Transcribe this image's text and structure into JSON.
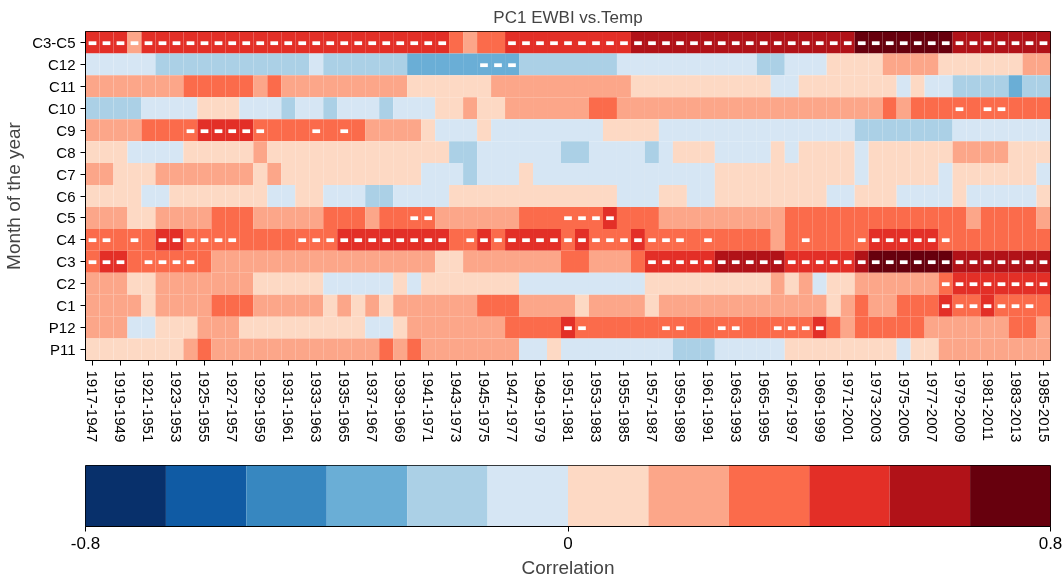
{
  "chart_data": {
    "type": "heatmap",
    "title": "PC1 EWBI vs.Temp",
    "ylabel": "Month of the year",
    "clabel": "Correlation",
    "categories": [
      "1917-1947",
      null,
      "1919-1949",
      null,
      "1921-1951",
      null,
      "1923-1953",
      null,
      "1925-1955",
      null,
      "1927-1957",
      null,
      "1929-1959",
      null,
      "1931-1961",
      null,
      "1933-1963",
      null,
      "1935-1965",
      null,
      "1937-1967",
      null,
      "1939-1969",
      null,
      "1941-1971",
      null,
      "1943-1973",
      null,
      "1945-1975",
      null,
      "1947-1977",
      null,
      "1949-1979",
      null,
      "1951-1981",
      null,
      "1953-1983",
      null,
      "1955-1985",
      null,
      "1957-1987",
      null,
      "1959-1989",
      null,
      "1961-1991",
      null,
      "1963-1993",
      null,
      "1965-1995",
      null,
      "1967-1997",
      null,
      "1969-1999",
      null,
      "1971-2001",
      null,
      "1973-2003",
      null,
      "1975-2005",
      null,
      "1977-2007",
      null,
      "1979-2009",
      null,
      "1981-2011",
      null,
      "1983-2013",
      null,
      "1985-2015"
    ],
    "y_categories": [
      "C3-C5",
      "C12",
      "C11",
      "C10",
      "C9",
      "C8",
      "C7",
      "C6",
      "C5",
      "C4",
      "C3",
      "C2",
      "C1",
      "P12",
      "P11"
    ],
    "clim": [
      -0.8,
      0.8
    ],
    "cticks": [
      -0.8,
      0,
      0.8
    ],
    "cells": [
      [
        0.47,
        0.47,
        0.47,
        0.2,
        0.47,
        0.47,
        0.47,
        0.47,
        0.47,
        0.47,
        0.47,
        0.47,
        0.47,
        0.47,
        0.47,
        0.47,
        0.47,
        0.47,
        0.47,
        0.47,
        0.47,
        0.47,
        0.47,
        0.47,
        0.47,
        0.47,
        0.33,
        0.2,
        0.33,
        0.33,
        0.47,
        0.47,
        0.47,
        0.47,
        0.47,
        0.47,
        0.47,
        0.47,
        0.47,
        0.6,
        0.6,
        0.6,
        0.6,
        0.6,
        0.6,
        0.6,
        0.6,
        0.6,
        0.6,
        0.6,
        0.6,
        0.6,
        0.6,
        0.6,
        0.6,
        0.73,
        0.73,
        0.73,
        0.73,
        0.73,
        0.73,
        0.73,
        0.6,
        0.6,
        0.6,
        0.6,
        0.6,
        0.6,
        0.6
      ],
      [
        -0.07,
        -0.07,
        -0.07,
        -0.07,
        -0.07,
        -0.2,
        -0.2,
        -0.2,
        -0.2,
        -0.2,
        -0.2,
        -0.2,
        -0.2,
        -0.2,
        -0.2,
        -0.2,
        -0.07,
        -0.2,
        -0.2,
        -0.2,
        -0.2,
        -0.2,
        -0.2,
        -0.33,
        -0.33,
        -0.33,
        -0.33,
        -0.33,
        -0.33,
        -0.33,
        -0.33,
        -0.2,
        -0.2,
        -0.2,
        -0.2,
        -0.2,
        -0.2,
        -0.2,
        -0.07,
        -0.07,
        -0.07,
        -0.07,
        -0.07,
        -0.07,
        -0.07,
        -0.07,
        -0.07,
        -0.07,
        -0.2,
        -0.2,
        -0.07,
        -0.07,
        -0.07,
        0.07,
        0.07,
        0.07,
        0.07,
        0.2,
        0.2,
        0.2,
        0.2,
        0.07,
        0.07,
        0.07,
        0.07,
        0.07,
        0.07,
        0.2,
        0.2
      ],
      [
        0.2,
        0.2,
        0.2,
        0.2,
        0.2,
        0.2,
        0.2,
        0.33,
        0.33,
        0.33,
        0.33,
        0.33,
        0.2,
        0.33,
        0.2,
        0.2,
        0.2,
        0.2,
        0.2,
        0.2,
        0.2,
        0.2,
        0.2,
        0.07,
        0.07,
        0.07,
        0.07,
        0.07,
        0.07,
        0.2,
        0.2,
        0.2,
        0.2,
        0.2,
        0.2,
        0.2,
        0.2,
        0.2,
        0.2,
        0.07,
        0.07,
        0.07,
        0.07,
        0.07,
        0.07,
        0.07,
        0.07,
        0.07,
        0.07,
        -0.07,
        -0.07,
        0.07,
        0.07,
        0.07,
        0.07,
        0.07,
        0.07,
        0.07,
        -0.07,
        0.07,
        -0.07,
        -0.07,
        -0.2,
        -0.2,
        -0.2,
        -0.2,
        -0.33,
        -0.2,
        -0.2
      ],
      [
        -0.2,
        -0.2,
        -0.2,
        -0.2,
        -0.07,
        -0.07,
        -0.07,
        -0.07,
        0.07,
        0.07,
        0.07,
        -0.07,
        -0.07,
        -0.07,
        -0.2,
        -0.07,
        -0.07,
        -0.2,
        -0.07,
        -0.07,
        -0.07,
        -0.2,
        -0.07,
        -0.07,
        -0.07,
        0.07,
        0.07,
        0.2,
        0.07,
        0.07,
        0.2,
        0.2,
        0.2,
        0.2,
        0.2,
        0.2,
        0.33,
        0.33,
        0.2,
        0.2,
        0.2,
        0.2,
        0.2,
        0.2,
        0.2,
        0.2,
        0.2,
        0.2,
        0.2,
        0.2,
        0.2,
        0.2,
        0.2,
        0.2,
        0.2,
        0.2,
        0.2,
        0.33,
        0.2,
        0.33,
        0.33,
        0.33,
        0.33,
        0.33,
        0.33,
        0.33,
        0.33,
        0.33,
        0.33
      ],
      [
        0.2,
        0.2,
        0.2,
        0.2,
        0.33,
        0.33,
        0.33,
        0.33,
        0.47,
        0.47,
        0.47,
        0.47,
        0.33,
        0.33,
        0.33,
        0.33,
        0.33,
        0.33,
        0.33,
        0.33,
        0.2,
        0.2,
        0.2,
        0.2,
        0.07,
        -0.07,
        -0.07,
        -0.07,
        0.07,
        -0.07,
        -0.07,
        -0.07,
        -0.07,
        -0.07,
        -0.07,
        -0.07,
        -0.07,
        0.07,
        0.07,
        0.07,
        0.07,
        -0.07,
        -0.07,
        -0.07,
        -0.07,
        -0.07,
        -0.07,
        -0.07,
        -0.07,
        -0.07,
        -0.07,
        -0.07,
        -0.07,
        -0.07,
        -0.07,
        -0.2,
        -0.2,
        -0.2,
        -0.2,
        -0.2,
        -0.2,
        -0.2,
        -0.07,
        -0.07,
        -0.07,
        -0.07,
        -0.07,
        -0.07,
        -0.07
      ],
      [
        0.07,
        0.07,
        0.07,
        -0.07,
        -0.07,
        -0.07,
        -0.07,
        0.07,
        0.07,
        0.07,
        0.07,
        0.07,
        0.2,
        0.07,
        0.07,
        0.07,
        0.07,
        0.07,
        0.07,
        0.07,
        0.07,
        0.07,
        0.07,
        0.07,
        0.07,
        0.07,
        -0.2,
        -0.2,
        -0.07,
        -0.07,
        -0.07,
        -0.07,
        -0.07,
        -0.07,
        -0.2,
        -0.2,
        -0.07,
        -0.07,
        -0.07,
        -0.07,
        -0.2,
        -0.07,
        0.07,
        0.07,
        0.07,
        -0.07,
        -0.07,
        -0.07,
        -0.07,
        0.07,
        -0.07,
        0.07,
        0.07,
        0.07,
        0.07,
        -0.07,
        0.07,
        0.07,
        0.07,
        0.07,
        0.07,
        0.07,
        0.2,
        0.2,
        0.2,
        0.2,
        0.07,
        0.07,
        0.07
      ],
      [
        0.2,
        0.2,
        0.07,
        0.07,
        0.07,
        0.2,
        0.2,
        0.2,
        0.2,
        0.2,
        0.2,
        0.2,
        0.07,
        0.2,
        0.07,
        0.07,
        0.07,
        0.07,
        0.07,
        0.07,
        0.07,
        0.07,
        0.07,
        0.07,
        -0.07,
        -0.07,
        -0.07,
        -0.2,
        -0.07,
        -0.07,
        -0.07,
        0.07,
        -0.07,
        -0.07,
        -0.07,
        -0.07,
        -0.07,
        -0.07,
        -0.07,
        -0.07,
        -0.07,
        -0.07,
        -0.07,
        -0.07,
        -0.07,
        0.07,
        0.07,
        0.07,
        0.07,
        0.07,
        0.07,
        0.07,
        0.07,
        0.07,
        0.07,
        -0.07,
        0.07,
        0.07,
        0.07,
        0.07,
        0.07,
        -0.07,
        0.07,
        0.07,
        0.07,
        0.07,
        0.07,
        0.07,
        -0.07
      ],
      [
        0.07,
        0.07,
        0.07,
        0.07,
        -0.07,
        -0.07,
        0.07,
        0.07,
        0.07,
        0.07,
        0.07,
        0.07,
        0.07,
        -0.07,
        -0.07,
        0.07,
        0.07,
        -0.07,
        -0.07,
        -0.07,
        -0.2,
        -0.2,
        -0.07,
        -0.07,
        -0.07,
        -0.07,
        0.07,
        0.07,
        0.07,
        0.07,
        0.07,
        0.07,
        0.07,
        0.07,
        0.07,
        0.07,
        0.07,
        0.07,
        -0.07,
        -0.07,
        -0.07,
        0.07,
        0.07,
        -0.07,
        -0.07,
        0.07,
        0.07,
        0.07,
        0.07,
        0.07,
        0.07,
        0.07,
        0.07,
        -0.07,
        -0.07,
        0.07,
        0.07,
        0.07,
        -0.07,
        -0.07,
        -0.07,
        -0.07,
        0.07,
        -0.07,
        -0.07,
        -0.07,
        -0.07,
        -0.07,
        0.07
      ],
      [
        0.2,
        0.2,
        0.2,
        0.07,
        0.07,
        0.2,
        0.2,
        0.2,
        0.2,
        0.33,
        0.33,
        0.33,
        0.2,
        0.2,
        0.2,
        0.2,
        0.2,
        0.33,
        0.33,
        0.33,
        0.2,
        0.33,
        0.33,
        0.33,
        0.33,
        0.2,
        0.2,
        0.2,
        0.2,
        0.2,
        0.2,
        0.33,
        0.33,
        0.33,
        0.33,
        0.33,
        0.33,
        0.47,
        0.33,
        0.33,
        0.33,
        0.2,
        0.2,
        0.2,
        0.2,
        0.2,
        0.2,
        0.2,
        0.2,
        0.2,
        0.33,
        0.33,
        0.33,
        0.33,
        0.33,
        0.33,
        0.33,
        0.33,
        0.33,
        0.33,
        0.33,
        0.33,
        0.33,
        0.2,
        0.33,
        0.33,
        0.33,
        0.33,
        0.2
      ],
      [
        0.33,
        0.33,
        0.33,
        0.33,
        0.33,
        0.47,
        0.47,
        0.33,
        0.33,
        0.33,
        0.33,
        0.33,
        0.33,
        0.33,
        0.33,
        0.33,
        0.33,
        0.33,
        0.47,
        0.47,
        0.47,
        0.47,
        0.47,
        0.47,
        0.47,
        0.47,
        0.33,
        0.33,
        0.47,
        0.33,
        0.47,
        0.47,
        0.47,
        0.47,
        0.33,
        0.47,
        0.33,
        0.33,
        0.33,
        0.47,
        0.33,
        0.33,
        0.33,
        0.33,
        0.33,
        0.33,
        0.33,
        0.33,
        0.33,
        0.2,
        0.33,
        0.33,
        0.33,
        0.33,
        0.33,
        0.33,
        0.47,
        0.47,
        0.47,
        0.47,
        0.47,
        0.33,
        0.33,
        0.33,
        0.33,
        0.33,
        0.33,
        0.33,
        0.33
      ],
      [
        0.33,
        0.47,
        0.47,
        0.33,
        0.33,
        0.33,
        0.33,
        0.33,
        0.33,
        0.2,
        0.2,
        0.2,
        0.2,
        0.2,
        0.2,
        0.2,
        0.2,
        0.2,
        0.2,
        0.2,
        0.2,
        0.2,
        0.2,
        0.2,
        0.2,
        0.07,
        0.07,
        0.2,
        0.2,
        0.2,
        0.2,
        0.2,
        0.2,
        0.2,
        0.33,
        0.33,
        0.2,
        0.2,
        0.2,
        0.33,
        0.47,
        0.47,
        0.47,
        0.47,
        0.47,
        0.6,
        0.6,
        0.6,
        0.6,
        0.6,
        0.47,
        0.47,
        0.47,
        0.47,
        0.47,
        0.6,
        0.73,
        0.73,
        0.73,
        0.73,
        0.73,
        0.73,
        0.6,
        0.6,
        0.6,
        0.6,
        0.6,
        0.6,
        0.6
      ],
      [
        0.2,
        0.2,
        0.2,
        0.07,
        0.07,
        0.2,
        0.2,
        0.2,
        0.2,
        0.2,
        0.2,
        0.2,
        0.07,
        0.07,
        0.07,
        0.07,
        0.07,
        -0.07,
        -0.07,
        -0.07,
        -0.07,
        -0.07,
        0.07,
        -0.07,
        0.07,
        0.07,
        0.07,
        0.07,
        0.07,
        0.07,
        0.07,
        -0.07,
        -0.07,
        -0.07,
        -0.07,
        -0.07,
        -0.07,
        -0.07,
        -0.07,
        -0.07,
        0.07,
        0.07,
        0.07,
        0.07,
        0.07,
        0.07,
        0.07,
        0.07,
        0.07,
        0.2,
        0.07,
        0.2,
        -0.07,
        0.07,
        0.07,
        0.2,
        0.2,
        0.2,
        0.2,
        0.2,
        0.2,
        0.33,
        0.47,
        0.47,
        0.47,
        0.47,
        0.47,
        0.47,
        0.47
      ],
      [
        0.2,
        0.2,
        0.2,
        0.2,
        0.07,
        0.2,
        0.2,
        0.2,
        0.2,
        0.33,
        0.33,
        0.33,
        0.2,
        0.2,
        0.2,
        0.2,
        0.2,
        0.07,
        0.2,
        0.07,
        0.2,
        0.07,
        0.2,
        0.2,
        0.2,
        0.2,
        0.2,
        0.2,
        0.33,
        0.33,
        0.33,
        0.2,
        0.2,
        0.2,
        0.2,
        0.07,
        0.2,
        0.2,
        0.2,
        0.2,
        0.07,
        0.2,
        0.2,
        0.2,
        0.2,
        0.2,
        0.2,
        0.2,
        0.2,
        0.2,
        0.2,
        0.2,
        0.2,
        0.07,
        0.2,
        0.33,
        0.2,
        0.2,
        0.33,
        0.33,
        0.33,
        0.47,
        0.33,
        0.33,
        0.47,
        0.33,
        0.33,
        0.33,
        0.33
      ],
      [
        0.2,
        0.2,
        0.2,
        -0.07,
        -0.07,
        0.07,
        0.07,
        0.07,
        0.2,
        0.2,
        0.2,
        0.07,
        0.07,
        0.07,
        0.07,
        0.07,
        0.07,
        0.07,
        0.07,
        0.07,
        -0.07,
        -0.07,
        0.07,
        0.2,
        0.2,
        0.2,
        0.2,
        0.2,
        0.2,
        0.2,
        0.33,
        0.33,
        0.33,
        0.33,
        0.47,
        0.33,
        0.33,
        0.33,
        0.33,
        0.33,
        0.33,
        0.33,
        0.33,
        0.33,
        0.33,
        0.33,
        0.33,
        0.33,
        0.33,
        0.33,
        0.33,
        0.33,
        0.47,
        0.33,
        0.2,
        0.33,
        0.33,
        0.33,
        0.33,
        0.33,
        0.2,
        0.2,
        0.2,
        0.2,
        0.2,
        0.2,
        0.33,
        0.33,
        0.2
      ],
      [
        0.07,
        0.07,
        0.07,
        0.07,
        0.07,
        0.07,
        0.07,
        0.2,
        0.33,
        0.2,
        0.2,
        0.2,
        0.2,
        0.2,
        0.2,
        0.2,
        0.2,
        0.2,
        0.2,
        0.2,
        0.2,
        0.33,
        0.2,
        0.33,
        0.2,
        0.2,
        0.2,
        0.2,
        0.2,
        0.2,
        0.2,
        -0.07,
        -0.07,
        0.07,
        -0.07,
        -0.07,
        -0.07,
        -0.07,
        -0.07,
        -0.07,
        -0.07,
        -0.07,
        -0.2,
        -0.2,
        -0.2,
        -0.07,
        -0.07,
        -0.07,
        -0.07,
        -0.07,
        0.07,
        0.07,
        0.07,
        0.07,
        0.07,
        0.07,
        0.07,
        0.07,
        -0.07,
        0.07,
        0.07,
        0.2,
        0.2,
        0.2,
        0.2,
        0.2,
        0.2,
        0.2,
        0.2
      ]
    ],
    "cell_labels": [
      [
        "▬",
        "▬",
        "▬",
        "▬",
        "▬",
        "▬",
        "▬",
        "▬",
        "▬",
        "▬",
        "▬",
        "▬",
        "▬",
        "▬",
        "▬",
        "▬",
        "▬",
        "▬",
        "▬",
        "▬",
        "▬",
        "▬",
        "▬",
        "▬",
        "▬",
        "▬",
        null,
        null,
        null,
        null,
        "▬",
        "▬",
        "▬",
        "▬",
        "▬",
        "▬",
        "▬",
        "▬",
        "▬",
        "▬",
        "▬",
        "▬",
        "▬",
        "▬",
        "▬",
        "▬",
        "▬",
        "▬",
        "▬",
        "▬",
        "▬",
        "▬",
        "▬",
        "▬",
        "▬",
        "▬",
        "▬",
        "▬",
        "▬",
        "▬",
        "▬",
        "▬",
        "▬",
        "▬",
        "▬",
        "▬",
        "▬",
        "▬",
        "▬"
      ],
      [
        null,
        null,
        null,
        null,
        null,
        null,
        null,
        null,
        null,
        null,
        null,
        null,
        null,
        null,
        null,
        null,
        null,
        null,
        null,
        null,
        null,
        null,
        null,
        null,
        null,
        null,
        null,
        null,
        "▬",
        "▬",
        "▬",
        null,
        null,
        null,
        null,
        null,
        null,
        null,
        null,
        null,
        null,
        null,
        null,
        null,
        null,
        null,
        null,
        null,
        null,
        null,
        null,
        null,
        null,
        null,
        null,
        null,
        null,
        null,
        null,
        null,
        null,
        null,
        null,
        null,
        null,
        null,
        null,
        null,
        null
      ],
      [
        null,
        null,
        null,
        null,
        null,
        null,
        null,
        null,
        null,
        null,
        null,
        null,
        null,
        null,
        null,
        null,
        null,
        null,
        null,
        null,
        null,
        null,
        null,
        null,
        null,
        null,
        null,
        null,
        null,
        null,
        null,
        null,
        null,
        null,
        null,
        null,
        null,
        null,
        null,
        null,
        null,
        null,
        null,
        null,
        null,
        null,
        null,
        null,
        null,
        null,
        null,
        null,
        null,
        null,
        null,
        null,
        null,
        null,
        null,
        null,
        null,
        null,
        null,
        null,
        null,
        null,
        null,
        null,
        null
      ],
      [
        null,
        null,
        null,
        null,
        null,
        null,
        null,
        null,
        null,
        null,
        null,
        null,
        null,
        null,
        null,
        null,
        null,
        null,
        null,
        null,
        null,
        null,
        null,
        null,
        null,
        null,
        null,
        null,
        null,
        null,
        null,
        null,
        null,
        null,
        null,
        null,
        null,
        null,
        null,
        null,
        null,
        null,
        null,
        null,
        null,
        null,
        null,
        null,
        null,
        null,
        null,
        null,
        null,
        null,
        null,
        null,
        null,
        null,
        null,
        null,
        null,
        null,
        "▬",
        null,
        "▬",
        "▬",
        null,
        null,
        null
      ],
      [
        null,
        null,
        null,
        null,
        null,
        null,
        null,
        "▬",
        "▬",
        "▬",
        "▬",
        "▬",
        "▬",
        null,
        null,
        null,
        "▬",
        null,
        "▬",
        null,
        null,
        null,
        null,
        null,
        null,
        null,
        null,
        null,
        null,
        null,
        null,
        null,
        null,
        null,
        null,
        null,
        null,
        null,
        null,
        null,
        null,
        null,
        null,
        null,
        null,
        null,
        null,
        null,
        null,
        null,
        null,
        null,
        null,
        null,
        null,
        null,
        null,
        null,
        null,
        null,
        null,
        null,
        null,
        null,
        null,
        null,
        null,
        null,
        null
      ],
      [
        null,
        null,
        null,
        null,
        null,
        null,
        null,
        null,
        null,
        null,
        null,
        null,
        null,
        null,
        null,
        null,
        null,
        null,
        null,
        null,
        null,
        null,
        null,
        null,
        null,
        null,
        null,
        null,
        null,
        null,
        null,
        null,
        null,
        null,
        null,
        null,
        null,
        null,
        null,
        null,
        null,
        null,
        null,
        null,
        null,
        null,
        null,
        null,
        null,
        null,
        null,
        null,
        null,
        null,
        null,
        null,
        null,
        null,
        null,
        null,
        null,
        null,
        null,
        null,
        null,
        null,
        null,
        null,
        null
      ],
      [
        null,
        null,
        null,
        null,
        null,
        null,
        null,
        null,
        null,
        null,
        null,
        null,
        null,
        null,
        null,
        null,
        null,
        null,
        null,
        null,
        null,
        null,
        null,
        null,
        null,
        null,
        null,
        null,
        null,
        null,
        null,
        null,
        null,
        null,
        null,
        null,
        null,
        null,
        null,
        null,
        null,
        null,
        null,
        null,
        null,
        null,
        null,
        null,
        null,
        null,
        null,
        null,
        null,
        null,
        null,
        null,
        null,
        null,
        null,
        null,
        null,
        null,
        null,
        null,
        null,
        null,
        null,
        null,
        null
      ],
      [
        null,
        null,
        null,
        null,
        null,
        null,
        null,
        null,
        null,
        null,
        null,
        null,
        null,
        null,
        null,
        null,
        null,
        null,
        null,
        null,
        null,
        null,
        null,
        null,
        null,
        null,
        null,
        null,
        null,
        null,
        null,
        null,
        null,
        null,
        null,
        null,
        null,
        null,
        null,
        null,
        null,
        null,
        null,
        null,
        null,
        null,
        null,
        null,
        null,
        null,
        null,
        null,
        null,
        null,
        null,
        null,
        null,
        null,
        null,
        null,
        null,
        null,
        null,
        null,
        null,
        null,
        null,
        null,
        null
      ],
      [
        null,
        null,
        null,
        null,
        null,
        null,
        null,
        null,
        null,
        null,
        null,
        null,
        null,
        null,
        null,
        null,
        null,
        null,
        null,
        null,
        null,
        null,
        null,
        "▬",
        "▬",
        null,
        null,
        null,
        null,
        null,
        null,
        null,
        null,
        null,
        "▬",
        "▬",
        "▬",
        "▬",
        null,
        null,
        null,
        null,
        null,
        null,
        null,
        null,
        null,
        null,
        null,
        null,
        null,
        null,
        null,
        null,
        null,
        null,
        null,
        null,
        null,
        null,
        null,
        null,
        null,
        null,
        null,
        null,
        null,
        null,
        null
      ],
      [
        "▬",
        "▬",
        null,
        "▬",
        null,
        "▬",
        "▬",
        "▬",
        "▬",
        "▬",
        "▬",
        null,
        null,
        null,
        null,
        "▬",
        "▬",
        "▬",
        "▬",
        "▬",
        "▬",
        "▬",
        "▬",
        "▬",
        "▬",
        "▬",
        null,
        "▬",
        "▬",
        "▬",
        "▬",
        "▬",
        "▬",
        "▬",
        "▬",
        "▬",
        "▬",
        "▬",
        "▬",
        "▬",
        "▬",
        "▬",
        "▬",
        null,
        "▬",
        null,
        null,
        null,
        null,
        null,
        null,
        "▬",
        null,
        null,
        null,
        "▬",
        "▬",
        "▬",
        "▬",
        "▬",
        "▬",
        "▬",
        null,
        null,
        null,
        null,
        null,
        null,
        null
      ],
      [
        "▬",
        "▬",
        "▬",
        null,
        "▬",
        "▬",
        "▬",
        "▬",
        null,
        null,
        null,
        null,
        null,
        null,
        null,
        null,
        null,
        null,
        null,
        null,
        null,
        null,
        null,
        null,
        null,
        null,
        null,
        null,
        null,
        null,
        null,
        null,
        null,
        null,
        null,
        null,
        null,
        null,
        null,
        null,
        "▬",
        "▬",
        "▬",
        "▬",
        "▬",
        "▬",
        "▬",
        "▬",
        "▬",
        "▬",
        "▬",
        "▬",
        "▬",
        "▬",
        "▬",
        "▬",
        "▬",
        "▬",
        "▬",
        "▬",
        "▬",
        "▬",
        "▬",
        "▬",
        "▬",
        "▬",
        "▬",
        "▬",
        "▬"
      ],
      [
        null,
        null,
        null,
        null,
        null,
        null,
        null,
        null,
        null,
        null,
        null,
        null,
        null,
        null,
        null,
        null,
        null,
        null,
        null,
        null,
        null,
        null,
        null,
        null,
        null,
        null,
        null,
        null,
        null,
        null,
        null,
        null,
        null,
        null,
        null,
        null,
        null,
        null,
        null,
        null,
        null,
        null,
        null,
        null,
        null,
        null,
        null,
        null,
        null,
        null,
        null,
        null,
        null,
        null,
        null,
        null,
        null,
        null,
        null,
        null,
        null,
        "▬",
        "▬",
        "▬",
        "▬",
        "▬",
        "▬",
        "▬",
        "▬"
      ],
      [
        null,
        null,
        null,
        null,
        null,
        null,
        null,
        null,
        null,
        null,
        null,
        null,
        null,
        null,
        null,
        null,
        null,
        null,
        null,
        null,
        null,
        null,
        null,
        null,
        null,
        null,
        null,
        null,
        null,
        null,
        null,
        null,
        null,
        null,
        null,
        null,
        null,
        null,
        null,
        null,
        null,
        null,
        null,
        null,
        null,
        null,
        null,
        null,
        null,
        null,
        null,
        null,
        null,
        null,
        null,
        null,
        null,
        null,
        null,
        null,
        null,
        "▬",
        "▬",
        "▬",
        "▬",
        "▬",
        "▬",
        "▬",
        null
      ],
      [
        null,
        null,
        null,
        null,
        null,
        null,
        null,
        null,
        null,
        null,
        null,
        null,
        null,
        null,
        null,
        null,
        null,
        null,
        null,
        null,
        null,
        null,
        null,
        null,
        null,
        null,
        null,
        null,
        null,
        null,
        null,
        null,
        null,
        null,
        "▬",
        "▬",
        null,
        null,
        null,
        null,
        null,
        "▬",
        "▬",
        null,
        null,
        "▬",
        "▬",
        null,
        null,
        "▬",
        "▬",
        "▬",
        "▬",
        null,
        null,
        null,
        null,
        null,
        null,
        null,
        null,
        null,
        null,
        null,
        null,
        null,
        null,
        null,
        null
      ],
      [
        null,
        null,
        null,
        null,
        null,
        null,
        null,
        null,
        null,
        null,
        null,
        null,
        null,
        null,
        null,
        null,
        null,
        null,
        null,
        null,
        null,
        null,
        null,
        null,
        null,
        null,
        null,
        null,
        null,
        null,
        null,
        null,
        null,
        null,
        null,
        null,
        null,
        null,
        null,
        null,
        null,
        null,
        null,
        null,
        null,
        null,
        null,
        null,
        null,
        null,
        null,
        null,
        null,
        null,
        null,
        null,
        null,
        null,
        null,
        null,
        null,
        null,
        null,
        null,
        null,
        null,
        null,
        null,
        null
      ]
    ]
  }
}
